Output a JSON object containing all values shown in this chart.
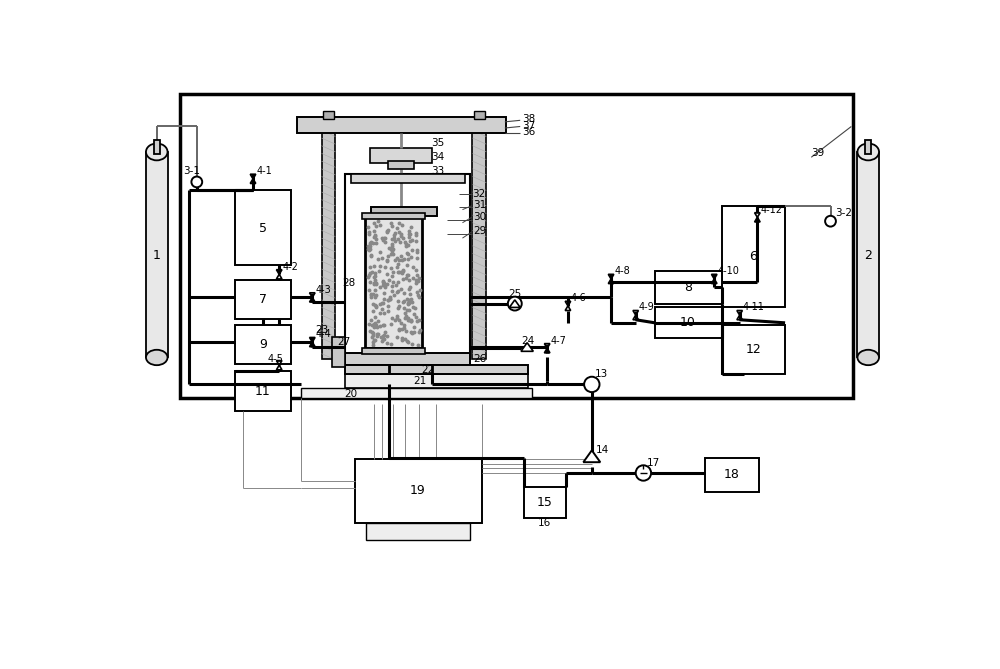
{
  "fig_width": 10.0,
  "fig_height": 6.69,
  "dpi": 100,
  "lw_thick": 2.2,
  "lw_med": 1.4,
  "lw_thin": 0.9,
  "lw_vthin": 0.6,
  "black": "#000000",
  "gray": "#999999",
  "lgray": "#cccccc",
  "dgray": "#555555",
  "white": "#ffffff",
  "bg": "#ffffff"
}
